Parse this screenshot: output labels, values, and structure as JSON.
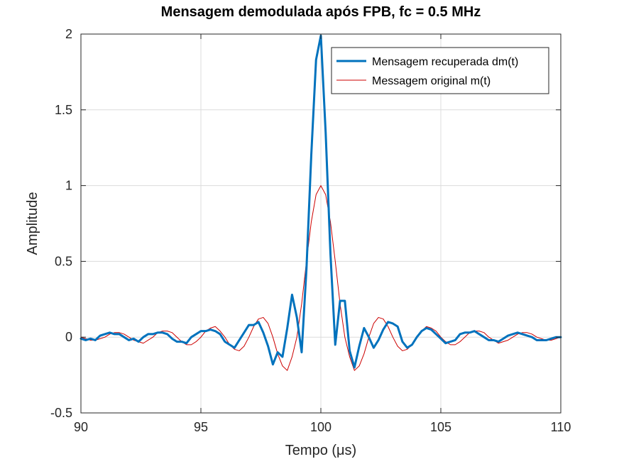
{
  "chart_data": {
    "type": "line",
    "title": "Mensagem demodulada após FPB, fc = 0.5 MHz",
    "xlabel": "Tempo (μs)",
    "ylabel": "Amplitude",
    "xlim": [
      90,
      110
    ],
    "ylim": [
      -0.5,
      2
    ],
    "xticks": [
      90,
      95,
      100,
      105,
      110
    ],
    "xtick_labels": [
      "90",
      "95",
      "100",
      "105",
      "110"
    ],
    "yticks": [
      -0.5,
      0,
      0.5,
      1,
      1.5,
      2
    ],
    "ytick_labels": [
      "-0.5",
      "0",
      "0.5",
      "1",
      "1.5",
      "2"
    ],
    "grid": true,
    "legend_position": "top-right",
    "series": [
      {
        "name": "Mensagem recuperada dm(t)",
        "color": "#0072bd",
        "line_width": "thick",
        "x": [
          90.0,
          90.2,
          90.4,
          90.6,
          90.8,
          91.0,
          91.2,
          91.4,
          91.6,
          91.8,
          92.0,
          92.2,
          92.4,
          92.6,
          92.8,
          93.0,
          93.2,
          93.4,
          93.6,
          93.8,
          94.0,
          94.2,
          94.4,
          94.6,
          94.8,
          95.0,
          95.2,
          95.4,
          95.6,
          95.8,
          96.0,
          96.2,
          96.4,
          96.6,
          96.8,
          97.0,
          97.2,
          97.4,
          97.6,
          97.8,
          98.0,
          98.2,
          98.4,
          98.6,
          98.8,
          99.0,
          99.2,
          99.4,
          99.6,
          99.8,
          100.0,
          100.2,
          100.4,
          100.6,
          100.8,
          101.0,
          101.2,
          101.4,
          101.6,
          101.8,
          102.0,
          102.2,
          102.4,
          102.6,
          102.8,
          103.0,
          103.2,
          103.4,
          103.6,
          103.8,
          104.0,
          104.2,
          104.4,
          104.6,
          104.8,
          105.0,
          105.2,
          105.4,
          105.6,
          105.8,
          106.0,
          106.2,
          106.4,
          106.6,
          106.8,
          107.0,
          107.2,
          107.4,
          107.6,
          107.8,
          108.0,
          108.2,
          108.4,
          108.6,
          108.8,
          109.0,
          109.2,
          109.4,
          109.6,
          109.8,
          110.0
        ],
        "y": [
          -0.01,
          -0.02,
          -0.01,
          -0.02,
          0.01,
          0.02,
          0.03,
          0.02,
          0.02,
          0.0,
          -0.02,
          -0.01,
          -0.03,
          0.0,
          0.02,
          0.02,
          0.03,
          0.03,
          0.02,
          -0.01,
          -0.03,
          -0.03,
          -0.04,
          0.0,
          0.02,
          0.04,
          0.04,
          0.05,
          0.04,
          0.02,
          -0.03,
          -0.05,
          -0.07,
          -0.02,
          0.03,
          0.08,
          0.08,
          0.1,
          0.03,
          -0.06,
          -0.18,
          -0.1,
          -0.13,
          0.06,
          0.28,
          0.13,
          -0.1,
          0.45,
          1.2,
          1.83,
          1.99,
          1.35,
          0.55,
          -0.05,
          0.24,
          0.24,
          -0.09,
          -0.2,
          -0.06,
          0.06,
          0.0,
          -0.07,
          -0.02,
          0.05,
          0.1,
          0.09,
          0.07,
          -0.03,
          -0.07,
          -0.05,
          0.0,
          0.04,
          0.06,
          0.05,
          0.02,
          -0.01,
          -0.04,
          -0.03,
          -0.02,
          0.02,
          0.03,
          0.03,
          0.04,
          0.02,
          0.0,
          -0.02,
          -0.02,
          -0.03,
          -0.01,
          0.01,
          0.02,
          0.03,
          0.02,
          0.01,
          0.0,
          -0.02,
          -0.02,
          -0.02,
          -0.01,
          0.0,
          0.0
        ]
      },
      {
        "name": "Messagem original m(t)",
        "color": "#cc0000",
        "line_width": "thin",
        "x": [
          90.0,
          90.2,
          90.4,
          90.6,
          90.8,
          91.0,
          91.2,
          91.4,
          91.6,
          91.8,
          92.0,
          92.2,
          92.4,
          92.6,
          92.8,
          93.0,
          93.2,
          93.4,
          93.6,
          93.8,
          94.0,
          94.2,
          94.4,
          94.6,
          94.8,
          95.0,
          95.2,
          95.4,
          95.6,
          95.8,
          96.0,
          96.2,
          96.4,
          96.6,
          96.8,
          97.0,
          97.2,
          97.4,
          97.6,
          97.8,
          98.0,
          98.2,
          98.4,
          98.6,
          98.8,
          99.0,
          99.2,
          99.4,
          99.6,
          99.8,
          100.0,
          100.2,
          100.4,
          100.6,
          100.8,
          101.0,
          101.2,
          101.4,
          101.6,
          101.8,
          102.0,
          102.2,
          102.4,
          102.6,
          102.8,
          103.0,
          103.2,
          103.4,
          103.6,
          103.8,
          104.0,
          104.2,
          104.4,
          104.6,
          104.8,
          105.0,
          105.2,
          105.4,
          105.6,
          105.8,
          106.0,
          106.2,
          106.4,
          106.6,
          106.8,
          107.0,
          107.2,
          107.4,
          107.6,
          107.8,
          108.0,
          108.2,
          108.4,
          108.6,
          108.8,
          109.0,
          109.2,
          109.4,
          109.6,
          109.8,
          110.0
        ],
        "y": [
          0.0,
          -0.01,
          -0.02,
          -0.02,
          -0.01,
          0.0,
          0.02,
          0.03,
          0.03,
          0.02,
          0.0,
          -0.02,
          -0.03,
          -0.04,
          -0.02,
          0.0,
          0.03,
          0.04,
          0.04,
          0.03,
          0.0,
          -0.03,
          -0.05,
          -0.05,
          -0.03,
          0.0,
          0.04,
          0.06,
          0.07,
          0.04,
          0.0,
          -0.05,
          -0.08,
          -0.09,
          -0.06,
          0.0,
          0.07,
          0.12,
          0.13,
          0.09,
          0.0,
          -0.11,
          -0.19,
          -0.22,
          -0.13,
          0.0,
          0.22,
          0.5,
          0.76,
          0.94,
          1.0,
          0.94,
          0.76,
          0.5,
          0.22,
          0.0,
          -0.13,
          -0.22,
          -0.19,
          -0.11,
          0.0,
          0.09,
          0.13,
          0.12,
          0.07,
          0.0,
          -0.06,
          -0.09,
          -0.08,
          -0.05,
          0.0,
          0.04,
          0.07,
          0.06,
          0.04,
          0.0,
          -0.03,
          -0.05,
          -0.05,
          -0.03,
          0.0,
          0.03,
          0.04,
          0.04,
          0.03,
          0.0,
          -0.02,
          -0.04,
          -0.03,
          -0.02,
          0.0,
          0.02,
          0.03,
          0.03,
          0.02,
          0.0,
          -0.01,
          -0.02,
          -0.02,
          -0.01,
          0.0
        ]
      }
    ]
  }
}
